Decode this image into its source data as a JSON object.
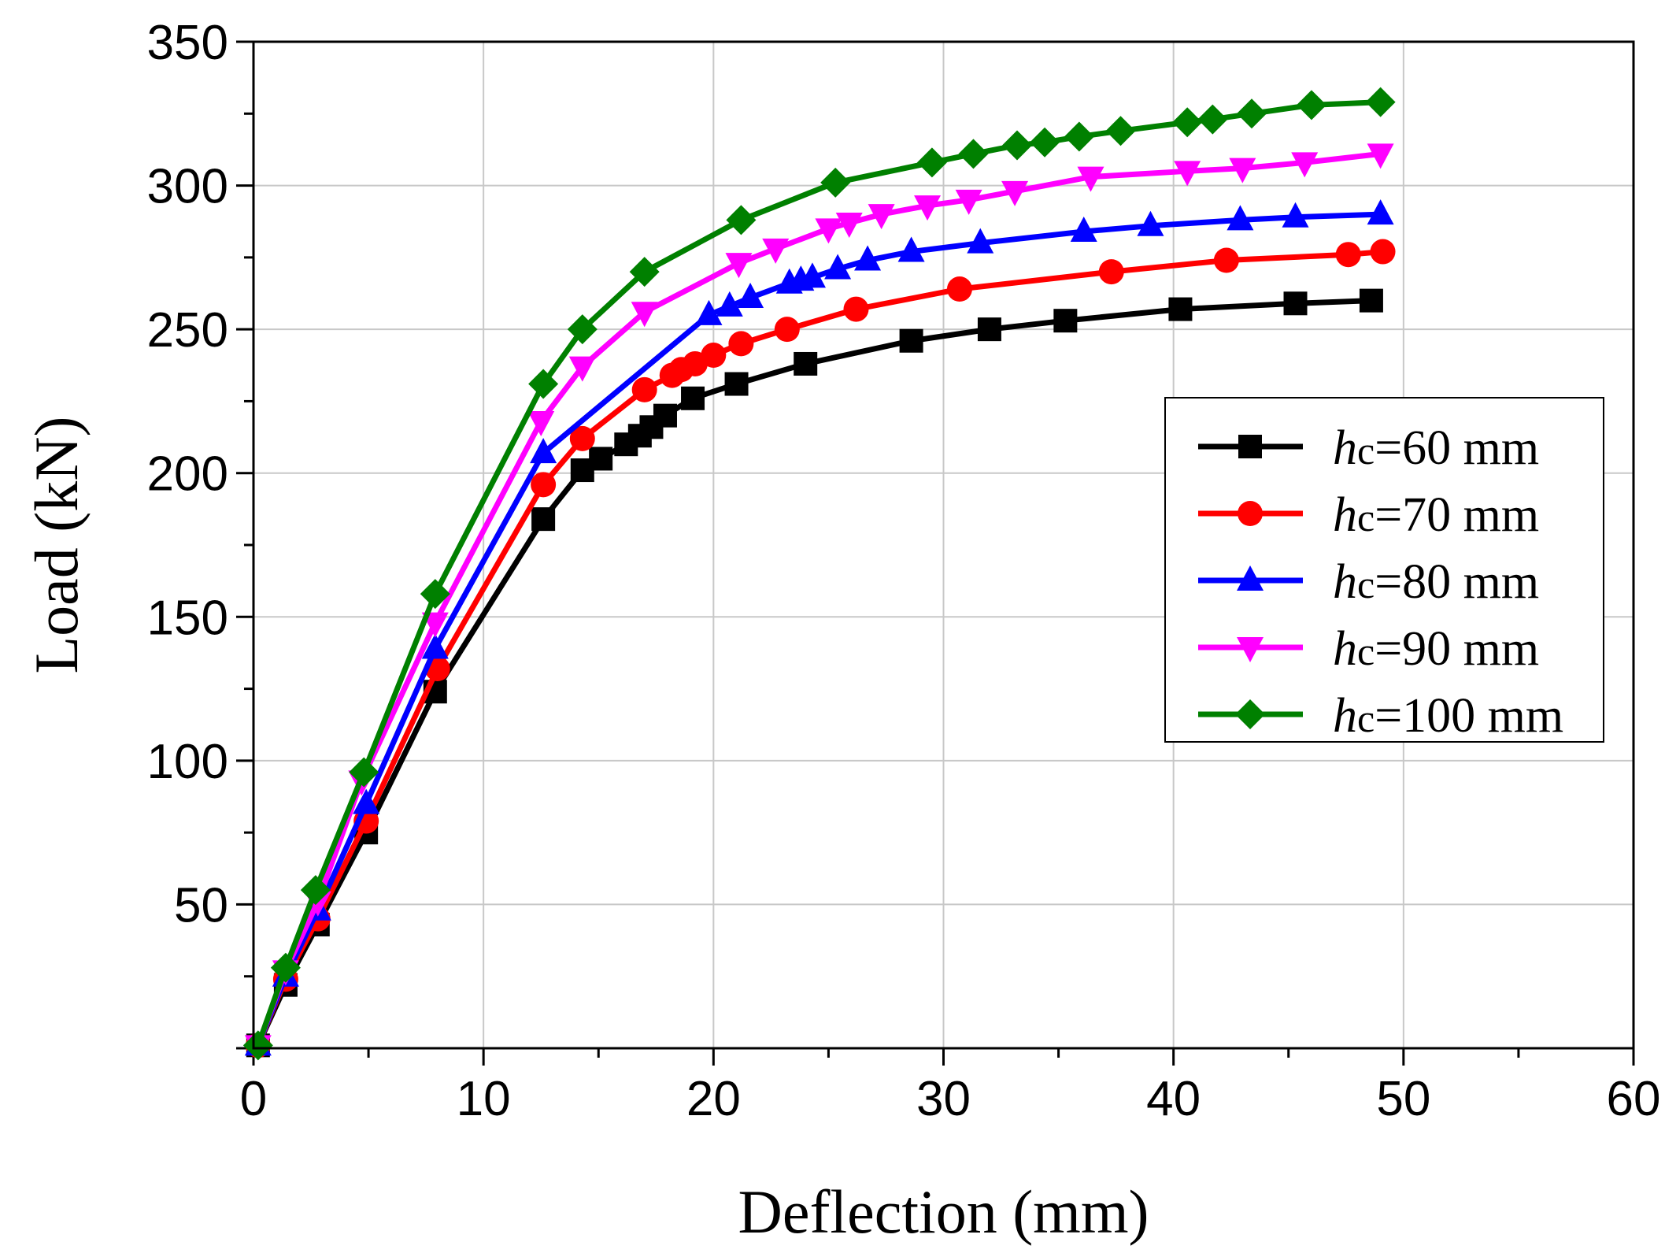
{
  "chart_data": {
    "type": "line",
    "title": "",
    "xlabel": "Deflection (mm)",
    "ylabel": "Load (kN)",
    "xlim": [
      0,
      60
    ],
    "ylim": [
      0,
      350
    ],
    "xticks": [
      0,
      10,
      20,
      30,
      40,
      50,
      60
    ],
    "xtick_labels": [
      "0",
      "10",
      "20",
      "30",
      "40",
      "50",
      "60"
    ],
    "yticks": [
      50,
      100,
      150,
      200,
      250,
      300,
      350
    ],
    "ytick_labels": [
      "50",
      "100",
      "150",
      "200",
      "250",
      "300",
      "350"
    ],
    "grid": true,
    "legend_position": "right",
    "series": [
      {
        "name": "hc=60 mm",
        "label_italic": "h",
        "label_sub": "c",
        "label_rest": "=60 mm",
        "color": "#000000",
        "marker": "square",
        "x": [
          0.2,
          1.4,
          2.8,
          4.9,
          7.9,
          12.6,
          14.3,
          15.1,
          16.2,
          16.8,
          17.3,
          17.9,
          19.1,
          21.0,
          24.0,
          28.6,
          32.0,
          35.3,
          40.3,
          45.3,
          48.6
        ],
        "y": [
          1,
          22,
          43,
          75,
          124,
          184,
          201,
          205,
          210,
          213,
          216,
          220,
          226,
          231,
          238,
          246,
          250,
          253,
          257,
          259,
          260
        ]
      },
      {
        "name": "hc=70 mm",
        "label_italic": "h",
        "label_sub": "c",
        "label_rest": "=70 mm",
        "color": "#ff0000",
        "marker": "circle",
        "x": [
          0.2,
          1.4,
          2.8,
          4.9,
          8.0,
          12.6,
          14.3,
          17.0,
          18.2,
          18.6,
          19.2,
          20.0,
          21.2,
          23.2,
          26.2,
          30.7,
          37.3,
          42.3,
          47.6,
          49.1
        ],
        "y": [
          1,
          24,
          45,
          79,
          132,
          196,
          212,
          229,
          234,
          236,
          238,
          241,
          245,
          250,
          257,
          264,
          270,
          274,
          276,
          277
        ]
      },
      {
        "name": "hc=80 mm",
        "label_italic": "h",
        "label_sub": "c",
        "label_rest": "=80 mm",
        "color": "#0000ff",
        "marker": "triangle-up",
        "x": [
          0.2,
          1.4,
          2.8,
          4.9,
          7.9,
          12.6,
          19.8,
          20.7,
          21.6,
          23.3,
          23.8,
          24.3,
          25.4,
          26.7,
          28.6,
          31.6,
          36.1,
          39.0,
          42.9,
          45.3,
          49.0
        ],
        "y": [
          1,
          25,
          48,
          85,
          139,
          207,
          255,
          258,
          261,
          266,
          267,
          268,
          271,
          274,
          277,
          280,
          284,
          286,
          288,
          289,
          290
        ]
      },
      {
        "name": "hc=90 mm",
        "label_italic": "h",
        "label_sub": "c",
        "label_rest": "=90 mm",
        "color": "#ff00ff",
        "marker": "triangle-down",
        "x": [
          0.2,
          1.4,
          2.8,
          4.7,
          7.9,
          12.5,
          14.3,
          17.0,
          21.1,
          22.7,
          25.0,
          25.9,
          27.3,
          29.3,
          31.1,
          33.1,
          36.4,
          40.6,
          43.0,
          45.7,
          49.0
        ],
        "y": [
          1,
          27,
          51,
          93,
          148,
          218,
          237,
          256,
          273,
          278,
          285,
          287,
          290,
          293,
          295,
          298,
          303,
          305,
          306,
          308,
          311
        ]
      },
      {
        "name": "hc=100 mm",
        "label_italic": "h",
        "label_sub": "c",
        "label_rest": "=100 mm",
        "color": "#008000",
        "marker": "diamond",
        "x": [
          0.2,
          1.4,
          2.7,
          4.8,
          7.9,
          12.6,
          14.3,
          17.0,
          21.2,
          25.3,
          29.5,
          31.3,
          33.2,
          34.4,
          35.9,
          37.7,
          40.6,
          41.7,
          43.4,
          46.0,
          49.0
        ],
        "y": [
          1,
          28,
          55,
          96,
          158,
          231,
          250,
          270,
          288,
          301,
          308,
          311,
          314,
          315,
          317,
          319,
          322,
          323,
          325,
          328,
          329
        ]
      }
    ]
  }
}
